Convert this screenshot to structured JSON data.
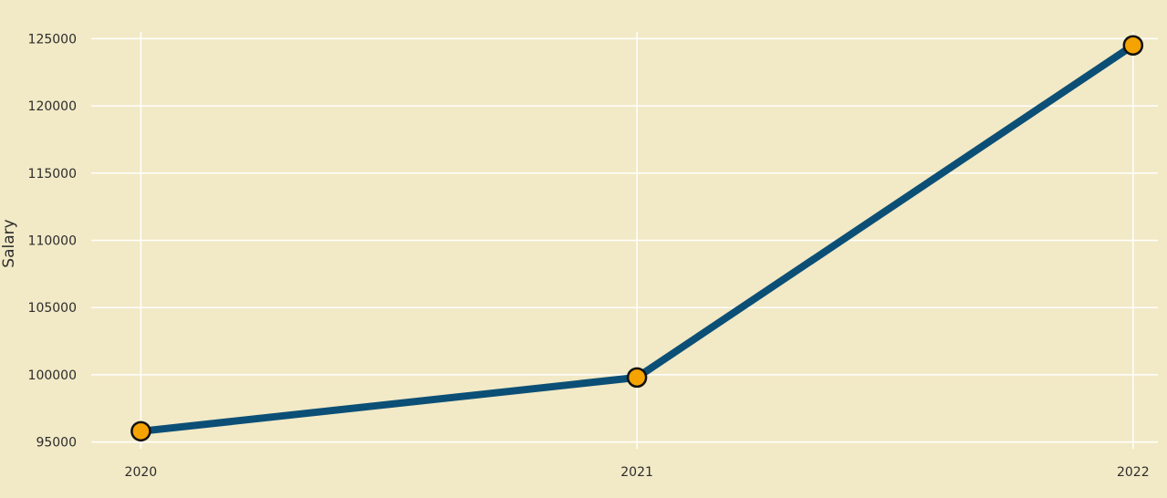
{
  "chart_data": {
    "type": "line",
    "title": "",
    "xlabel": "",
    "ylabel": "Salary",
    "x": [
      2020,
      2021,
      2022
    ],
    "x_tick_labels": [
      "2020",
      "2021",
      "2022"
    ],
    "y_ticks": [
      95000,
      100000,
      105000,
      110000,
      115000,
      120000,
      125000
    ],
    "y_tick_labels": [
      "95000",
      "100000",
      "105000",
      "110000",
      "115000",
      "120000",
      "125000"
    ],
    "ylim": [
      94500,
      125500
    ],
    "xlim": [
      2019.9,
      2022.05
    ],
    "series": [
      {
        "values": [
          95800,
          99800,
          124500
        ]
      }
    ],
    "grid": true,
    "line_color": "#0b4f76",
    "marker_fill": "#f5a300",
    "marker_stroke": "#111111",
    "background_color": "#f2e9c6",
    "grid_color": "#ffffff"
  }
}
